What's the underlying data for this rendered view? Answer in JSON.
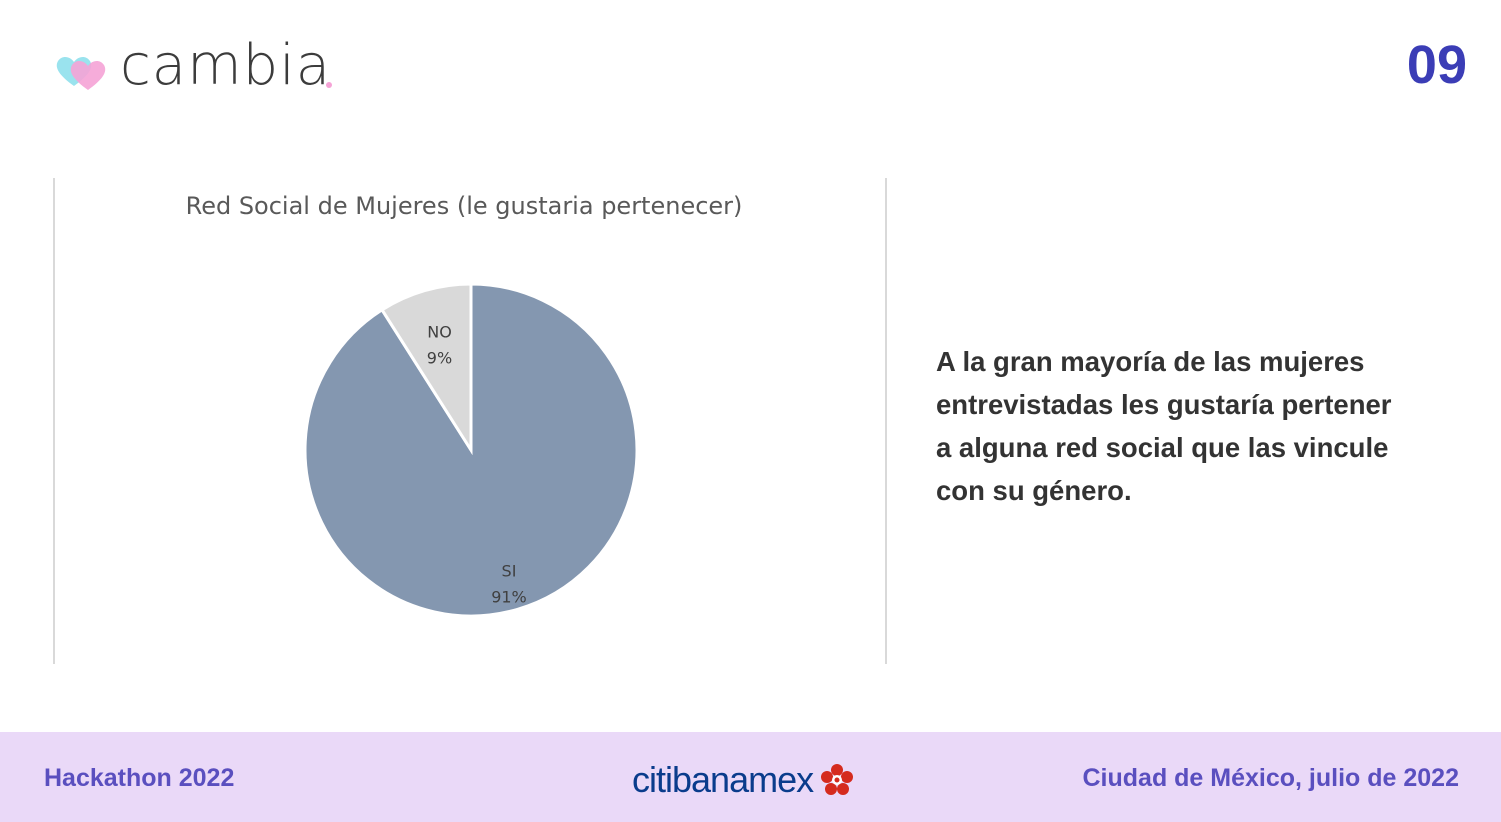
{
  "header": {
    "logo_text": "cambia",
    "page_number": "09"
  },
  "chart_data": {
    "type": "pie",
    "title": "Red Social de Mujeres (le gustaria pertenecer)",
    "slices": [
      {
        "label": "SI",
        "value": 91,
        "display": "91%",
        "color": "#8497b0"
      },
      {
        "label": "NO",
        "value": 9,
        "display": "9%",
        "color": "#d9d9d9"
      }
    ],
    "legend": "none"
  },
  "main": {
    "text": "A la gran mayoría de las mujeres entrevistadas les gustaría pertener a alguna red social que las vincule con su género."
  },
  "footer": {
    "left": "Hackathon 2022",
    "brand_part1": "citi",
    "brand_part2": "banamex",
    "right": "Ciudad de México, julio de 2022"
  },
  "colors": {
    "accent": "#3b3db6",
    "footer_bg": "#ead9f8",
    "footer_text": "#5a4fbf",
    "brand_blue": "#0a3c8c",
    "brand_red": "#d52b1e"
  },
  "icons": [
    "cambia-hearts-icon",
    "banamex-flower-icon"
  ]
}
